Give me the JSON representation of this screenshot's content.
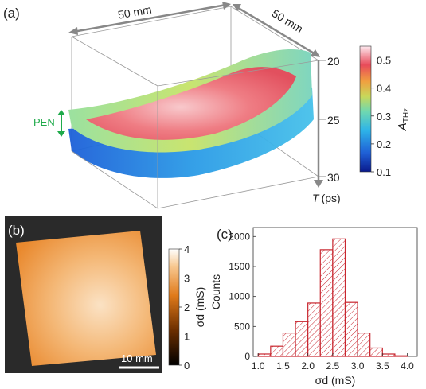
{
  "panels": {
    "a": {
      "label": "(a)"
    },
    "b": {
      "label": "(b)"
    },
    "c": {
      "label": "(c)"
    }
  },
  "chart_data": [
    {
      "type": "surface3d",
      "panel": "(a)",
      "dimensions": {
        "width_label": "50 mm",
        "depth_label": "50 mm"
      },
      "layer_label": "PEN",
      "z_axis": {
        "label_var": "T",
        "label_unit": "(ps)",
        "ticks": [
          "20",
          "25",
          "30"
        ],
        "range": [
          20,
          30
        ]
      },
      "colorbar": {
        "label_main": "A",
        "label_sub": "THz",
        "ticks": [
          "0.5",
          "0.4",
          "0.3",
          "0.2",
          "0.1"
        ],
        "range": [
          0.1,
          0.55
        ]
      },
      "colors": {
        "axis": "#888888",
        "pen_arrow": "#1faa4a",
        "pen_text": "#1faa4a"
      }
    },
    {
      "type": "heatmap",
      "panel": "(b)",
      "colorbar": {
        "label": "σd (mS)",
        "ticks": [
          "4",
          "3",
          "2",
          "1",
          "0"
        ],
        "range": [
          0,
          4
        ]
      },
      "scale_bar": {
        "label": "10 mm"
      },
      "colors": {
        "background": "#2a2a2a",
        "sample": "#e98a2e"
      }
    },
    {
      "type": "bar",
      "panel": "(c)",
      "xlabel": "σd (mS)",
      "ylabel": "Counts",
      "x_ticks": [
        "1.0",
        "1.5",
        "2.0",
        "2.5",
        "3.0",
        "3.5",
        "4.0"
      ],
      "y_ticks": [
        "0",
        "500",
        "1000",
        "1500",
        "2000"
      ],
      "xlim": [
        0.9,
        4.2
      ],
      "ylim": [
        0,
        2150
      ],
      "bin_width": 0.25,
      "bins": [
        {
          "x": 1.125,
          "count": 40
        },
        {
          "x": 1.375,
          "count": 170
        },
        {
          "x": 1.625,
          "count": 390
        },
        {
          "x": 1.875,
          "count": 580
        },
        {
          "x": 2.125,
          "count": 890
        },
        {
          "x": 2.375,
          "count": 1780
        },
        {
          "x": 2.625,
          "count": 1960
        },
        {
          "x": 2.875,
          "count": 900
        },
        {
          "x": 3.125,
          "count": 390
        },
        {
          "x": 3.375,
          "count": 140
        },
        {
          "x": 3.625,
          "count": 40
        },
        {
          "x": 3.875,
          "count": 10
        }
      ],
      "colors": {
        "bar_edge": "#c8262f",
        "hatch": "#c8262f"
      }
    }
  ]
}
